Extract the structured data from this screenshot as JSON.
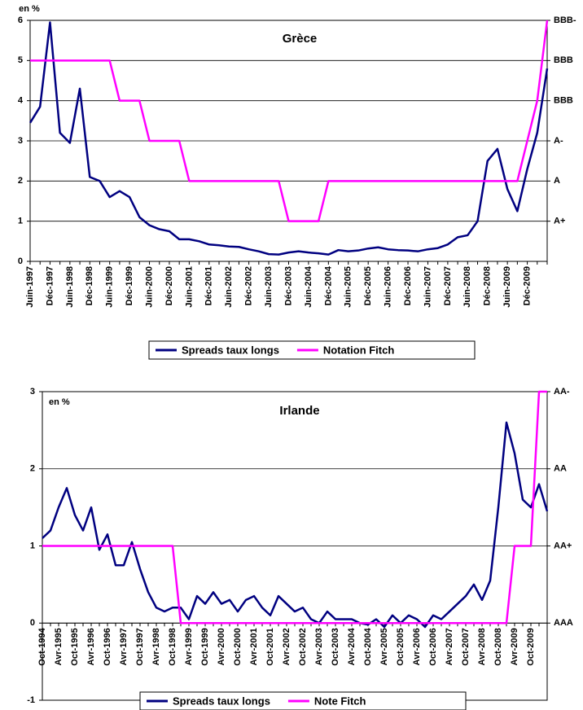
{
  "chart_data": [
    {
      "type": "line",
      "title": "Grèce",
      "annotation": "en %",
      "categories": [
        "Juin-1997",
        null,
        "Déc-1997",
        null,
        "Juin-1998",
        null,
        "Déc-1998",
        null,
        "Juin-1999",
        null,
        "Déc-1999",
        null,
        "Juin-2000",
        null,
        "Déc-2000",
        null,
        "Juin-2001",
        null,
        "Déc-2001",
        null,
        "Juin-2002",
        null,
        "Déc-2002",
        null,
        "Juin-2003",
        null,
        "Déc-2003",
        null,
        "Juin-2004",
        null,
        "Déc-2004",
        null,
        "Juin-2005",
        null,
        "Déc-2005",
        null,
        "Juin-2006",
        null,
        "Déc-2006",
        null,
        "Juin-2007",
        null,
        "Déc-2007",
        null,
        "Juin-2008",
        null,
        "Déc-2008",
        null,
        "Juin-2009",
        null,
        "Déc-2009",
        null,
        null
      ],
      "series": [
        {
          "name": "Spreads taux longs",
          "color": "#000080",
          "values": [
            3.45,
            3.85,
            5.95,
            3.2,
            2.95,
            4.3,
            2.1,
            2.0,
            1.6,
            1.75,
            1.6,
            1.1,
            0.9,
            0.8,
            0.75,
            0.55,
            0.55,
            0.5,
            0.42,
            0.4,
            0.37,
            0.36,
            0.3,
            0.25,
            0.18,
            0.17,
            0.22,
            0.25,
            0.22,
            0.2,
            0.17,
            0.28,
            0.25,
            0.27,
            0.32,
            0.35,
            0.3,
            0.28,
            0.27,
            0.25,
            0.3,
            0.33,
            0.42,
            0.6,
            0.65,
            1.0,
            2.5,
            2.8,
            1.8,
            1.25,
            2.3,
            3.2,
            4.8
          ]
        },
        {
          "name": "Notation Fitch",
          "color": "#ff00ff",
          "axis": "y2",
          "values": [
            5,
            5,
            5,
            5,
            5,
            5,
            5,
            5,
            5,
            4,
            4,
            4,
            3,
            3,
            3,
            3,
            2,
            2,
            2,
            2,
            2,
            2,
            2,
            2,
            2,
            2,
            1,
            1,
            1,
            1,
            2,
            2,
            2,
            2,
            2,
            2,
            2,
            2,
            2,
            2,
            2,
            2,
            2,
            2,
            2,
            2,
            2,
            2,
            2,
            2,
            3,
            4,
            6
          ]
        }
      ],
      "ylim": [
        0,
        6
      ],
      "yticks": [
        0,
        1,
        2,
        3,
        4,
        5,
        6
      ],
      "y2lim": [
        0,
        6
      ],
      "y2ticks": [
        {
          "value": 6,
          "label": "BBB-"
        },
        {
          "value": 5,
          "label": "BBB"
        },
        {
          "value": 4,
          "label": "BBB"
        },
        {
          "value": 3,
          "label": "A-"
        },
        {
          "value": 2,
          "label": "A"
        },
        {
          "value": 1,
          "label": "A+"
        }
      ],
      "grid": true
    },
    {
      "type": "line",
      "title": "Irlande",
      "annotation": "en %",
      "categories": [
        "Oct-1994",
        null,
        "Avr-1995",
        null,
        "Oct-1995",
        null,
        "Avr-1996",
        null,
        "Oct-1996",
        null,
        "Avr-1997",
        null,
        "Oct-1997",
        null,
        "Avr-1998",
        null,
        "Oct-1998",
        null,
        "Avr-1999",
        null,
        "Oct-1999",
        null,
        "Avr-2000",
        null,
        "Oct-2000",
        null,
        "Avr-2001",
        null,
        "Oct-2001",
        null,
        "Avr-2002",
        null,
        "Oct-2002",
        null,
        "Avr-2003",
        null,
        "Oct-2003",
        null,
        "Avr-2004",
        null,
        "Oct-2004",
        null,
        "Avr-2005",
        null,
        "Oct-2005",
        null,
        "Avr-2006",
        null,
        "Oct-2006",
        null,
        "Avr-2007",
        null,
        "Oct-2007",
        null,
        "Avr-2008",
        null,
        "Oct-2008",
        null,
        "Avr-2009",
        null,
        "Oct-2009",
        null,
        null
      ],
      "series": [
        {
          "name": "Spreads taux longs",
          "color": "#000080",
          "values": [
            1.1,
            1.2,
            1.5,
            1.75,
            1.4,
            1.2,
            1.5,
            0.95,
            1.15,
            0.75,
            0.75,
            1.05,
            0.7,
            0.4,
            0.2,
            0.15,
            0.2,
            0.2,
            0.05,
            0.35,
            0.25,
            0.4,
            0.25,
            0.3,
            0.15,
            0.3,
            0.35,
            0.2,
            0.1,
            0.35,
            0.25,
            0.15,
            0.2,
            0.05,
            0.0,
            0.15,
            0.05,
            0.05,
            0.05,
            0.0,
            -0.02,
            0.05,
            -0.05,
            0.1,
            0.0,
            0.1,
            0.05,
            -0.05,
            0.1,
            0.05,
            0.15,
            0.25,
            0.35,
            0.5,
            0.3,
            0.55,
            1.5,
            2.6,
            2.2,
            1.6,
            1.5,
            1.8,
            1.45
          ]
        },
        {
          "name": "Note Fitch",
          "color": "#ff00ff",
          "axis": "y2",
          "values": [
            1,
            1,
            1,
            1,
            1,
            1,
            1,
            1,
            1,
            1,
            1,
            1,
            1,
            1,
            1,
            1,
            1,
            0,
            0,
            0,
            0,
            0,
            0,
            0,
            0,
            0,
            0,
            0,
            0,
            0,
            0,
            0,
            0,
            0,
            0,
            0,
            0,
            0,
            0,
            0,
            0,
            0,
            0,
            0,
            0,
            0,
            0,
            0,
            0,
            0,
            0,
            0,
            0,
            0,
            0,
            0,
            0,
            0,
            1,
            1,
            1,
            3,
            3
          ]
        }
      ],
      "ylim": [
        -1,
        3
      ],
      "yticks": [
        -1,
        0,
        1,
        2,
        3
      ],
      "y2lim": [
        -1,
        3
      ],
      "y2ticks": [
        {
          "value": 3,
          "label": "AA-"
        },
        {
          "value": 2,
          "label": "AA"
        },
        {
          "value": 1,
          "label": "AA+"
        },
        {
          "value": 0,
          "label": "AAA"
        }
      ],
      "grid": true
    }
  ]
}
